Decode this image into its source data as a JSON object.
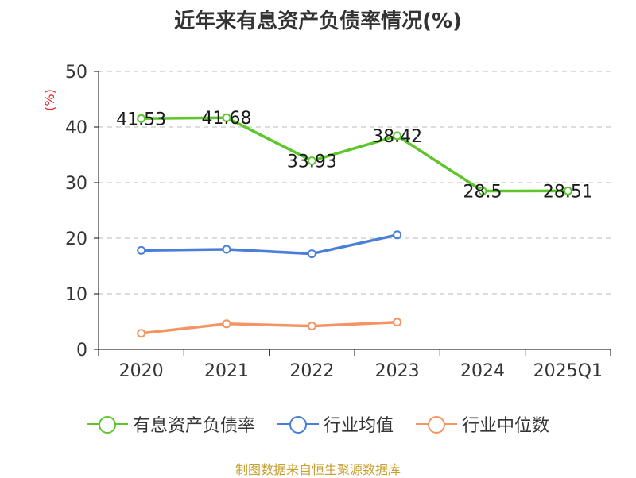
{
  "chart_data": {
    "type": "line",
    "title": "近年来有息资产负债率情况(%)",
    "ylabel": "(%)",
    "xlabel": "",
    "categories": [
      "2020",
      "2021",
      "2022",
      "2023",
      "2024",
      "2025Q1"
    ],
    "ylim": [
      0,
      50
    ],
    "yticks": [
      0,
      10,
      20,
      30,
      40,
      50
    ],
    "grid": "horizontal-dashed",
    "legend_position": "bottom",
    "series": [
      {
        "name": "有息资产负债率",
        "color": "#5cc62b",
        "values": [
          41.53,
          41.68,
          33.93,
          38.42,
          28.5,
          28.51
        ],
        "labels": [
          "41.53",
          "41.68",
          "33.93",
          "38.42",
          "28.5",
          "28.51"
        ]
      },
      {
        "name": "行业均值",
        "color": "#4a7fd8",
        "values": [
          17.8,
          18.0,
          17.2,
          20.6,
          null,
          null
        ]
      },
      {
        "name": "行业中位数",
        "color": "#f39463",
        "values": [
          2.9,
          4.6,
          4.2,
          4.9,
          null,
          null
        ]
      }
    ]
  },
  "footer": "制图数据来自恒生聚源数据库"
}
